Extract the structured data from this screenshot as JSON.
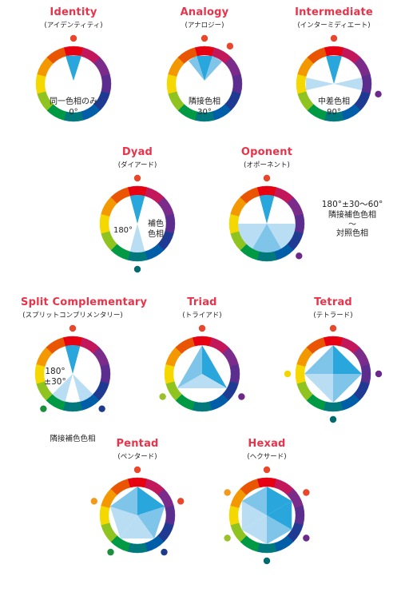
{
  "colors": {
    "title_red": "#e8334a",
    "wheel": [
      "#e60012",
      "#c2185b",
      "#7b2c8a",
      "#5b2d8e",
      "#1f3a93",
      "#005ea8",
      "#00797c",
      "#009944",
      "#8fc31f",
      "#f5d800",
      "#f39800",
      "#ea5504"
    ],
    "tint_dark": "#29a6dc",
    "tint_mid": "#7fc5ea",
    "tint_light": "#b9def3",
    "dot_red": "#e8472c",
    "dot_purple": "#6b2a8a",
    "dot_teal": "#006b6f",
    "dot_green": "#1a8f3c",
    "dot_navy": "#1f3a8a",
    "dot_olive": "#9ac02a",
    "dot_yellow": "#f2d600",
    "dot_orange": "#f39a1c"
  },
  "panels": {
    "identity": {
      "title": "Identity",
      "subtitle": "(アイデンティティ)",
      "label1": "同一色相のみ",
      "label2": "0°"
    },
    "analogy": {
      "title": "Analogy",
      "subtitle": "(アナロジー)",
      "label1": "隣接色相",
      "label2": "30°"
    },
    "intermediate": {
      "title": "Intermediate",
      "subtitle": "(インターミディエート)",
      "label1": "中差色相",
      "label2": "90°"
    },
    "dyad": {
      "title": "Dyad",
      "subtitle": "(ダイアード)",
      "label_left": "180°",
      "label_right1": "補色",
      "label_right2": "色相"
    },
    "oponent": {
      "title": "Oponent",
      "subtitle": "(オポーネント)",
      "note1": "180°±30〜60°",
      "note2": "隣接補色色相",
      "note3": "〜",
      "note4": "対照色相"
    },
    "split": {
      "title": "Split Complementary",
      "subtitle": "(スプリットコンプリメンタリー)",
      "label1": "180°",
      "label2": "±30°",
      "below": "隣接補色色相"
    },
    "triad": {
      "title": "Triad",
      "subtitle": "(トライアド)"
    },
    "tetrad": {
      "title": "Tetrad",
      "subtitle": "(テトラード)"
    },
    "pentad": {
      "title": "Pentad",
      "subtitle": "(ペンタード)"
    },
    "hexad": {
      "title": "Hexad",
      "subtitle": "(ヘクサード)"
    }
  }
}
